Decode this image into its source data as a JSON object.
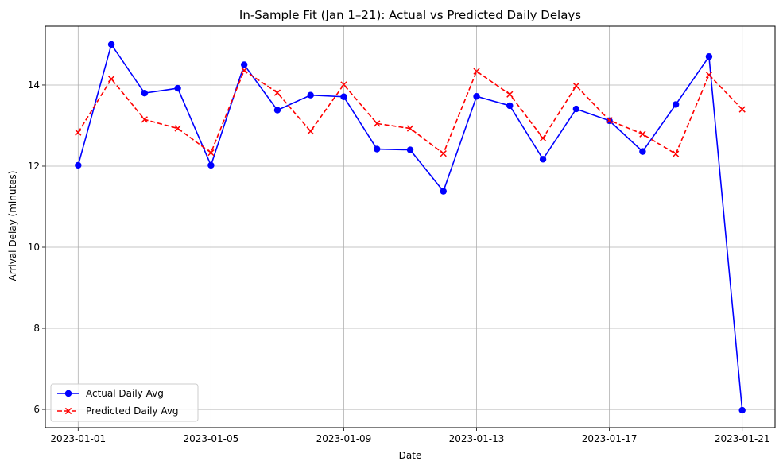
{
  "chart_data": {
    "type": "line",
    "title": "In-Sample Fit (Jan 1–21): Actual vs Predicted Daily Delays",
    "xlabel": "Date",
    "ylabel": "Arrival Delay (minutes)",
    "x": [
      "2023-01-01",
      "2023-01-02",
      "2023-01-03",
      "2023-01-04",
      "2023-01-05",
      "2023-01-06",
      "2023-01-07",
      "2023-01-08",
      "2023-01-09",
      "2023-01-10",
      "2023-01-11",
      "2023-01-12",
      "2023-01-13",
      "2023-01-14",
      "2023-01-15",
      "2023-01-16",
      "2023-01-17",
      "2023-01-18",
      "2023-01-19",
      "2023-01-20",
      "2023-01-21"
    ],
    "xticks": [
      "2023-01-01",
      "2023-01-05",
      "2023-01-09",
      "2023-01-13",
      "2023-01-17",
      "2023-01-21"
    ],
    "yticks": [
      6,
      8,
      10,
      12,
      14
    ],
    "ylim": [
      5.55,
      15.45
    ],
    "grid": true,
    "legend_position": "lower-left",
    "series": [
      {
        "name": "Actual Daily Avg",
        "color": "#0000ff",
        "linestyle": "solid",
        "marker": "circle",
        "values": [
          12.02,
          15.0,
          13.8,
          13.92,
          12.02,
          14.5,
          13.38,
          13.75,
          13.71,
          12.42,
          12.4,
          11.38,
          13.72,
          13.49,
          12.17,
          13.41,
          13.12,
          12.36,
          13.52,
          14.7,
          5.98
        ]
      },
      {
        "name": "Predicted Daily Avg",
        "color": "#ff0000",
        "linestyle": "dashed",
        "marker": "x",
        "values": [
          12.83,
          14.15,
          13.15,
          12.93,
          12.33,
          14.36,
          13.81,
          12.86,
          14.01,
          13.05,
          12.93,
          12.31,
          14.34,
          13.77,
          12.69,
          13.98,
          13.13,
          12.79,
          12.3,
          14.25,
          13.4
        ]
      }
    ]
  }
}
